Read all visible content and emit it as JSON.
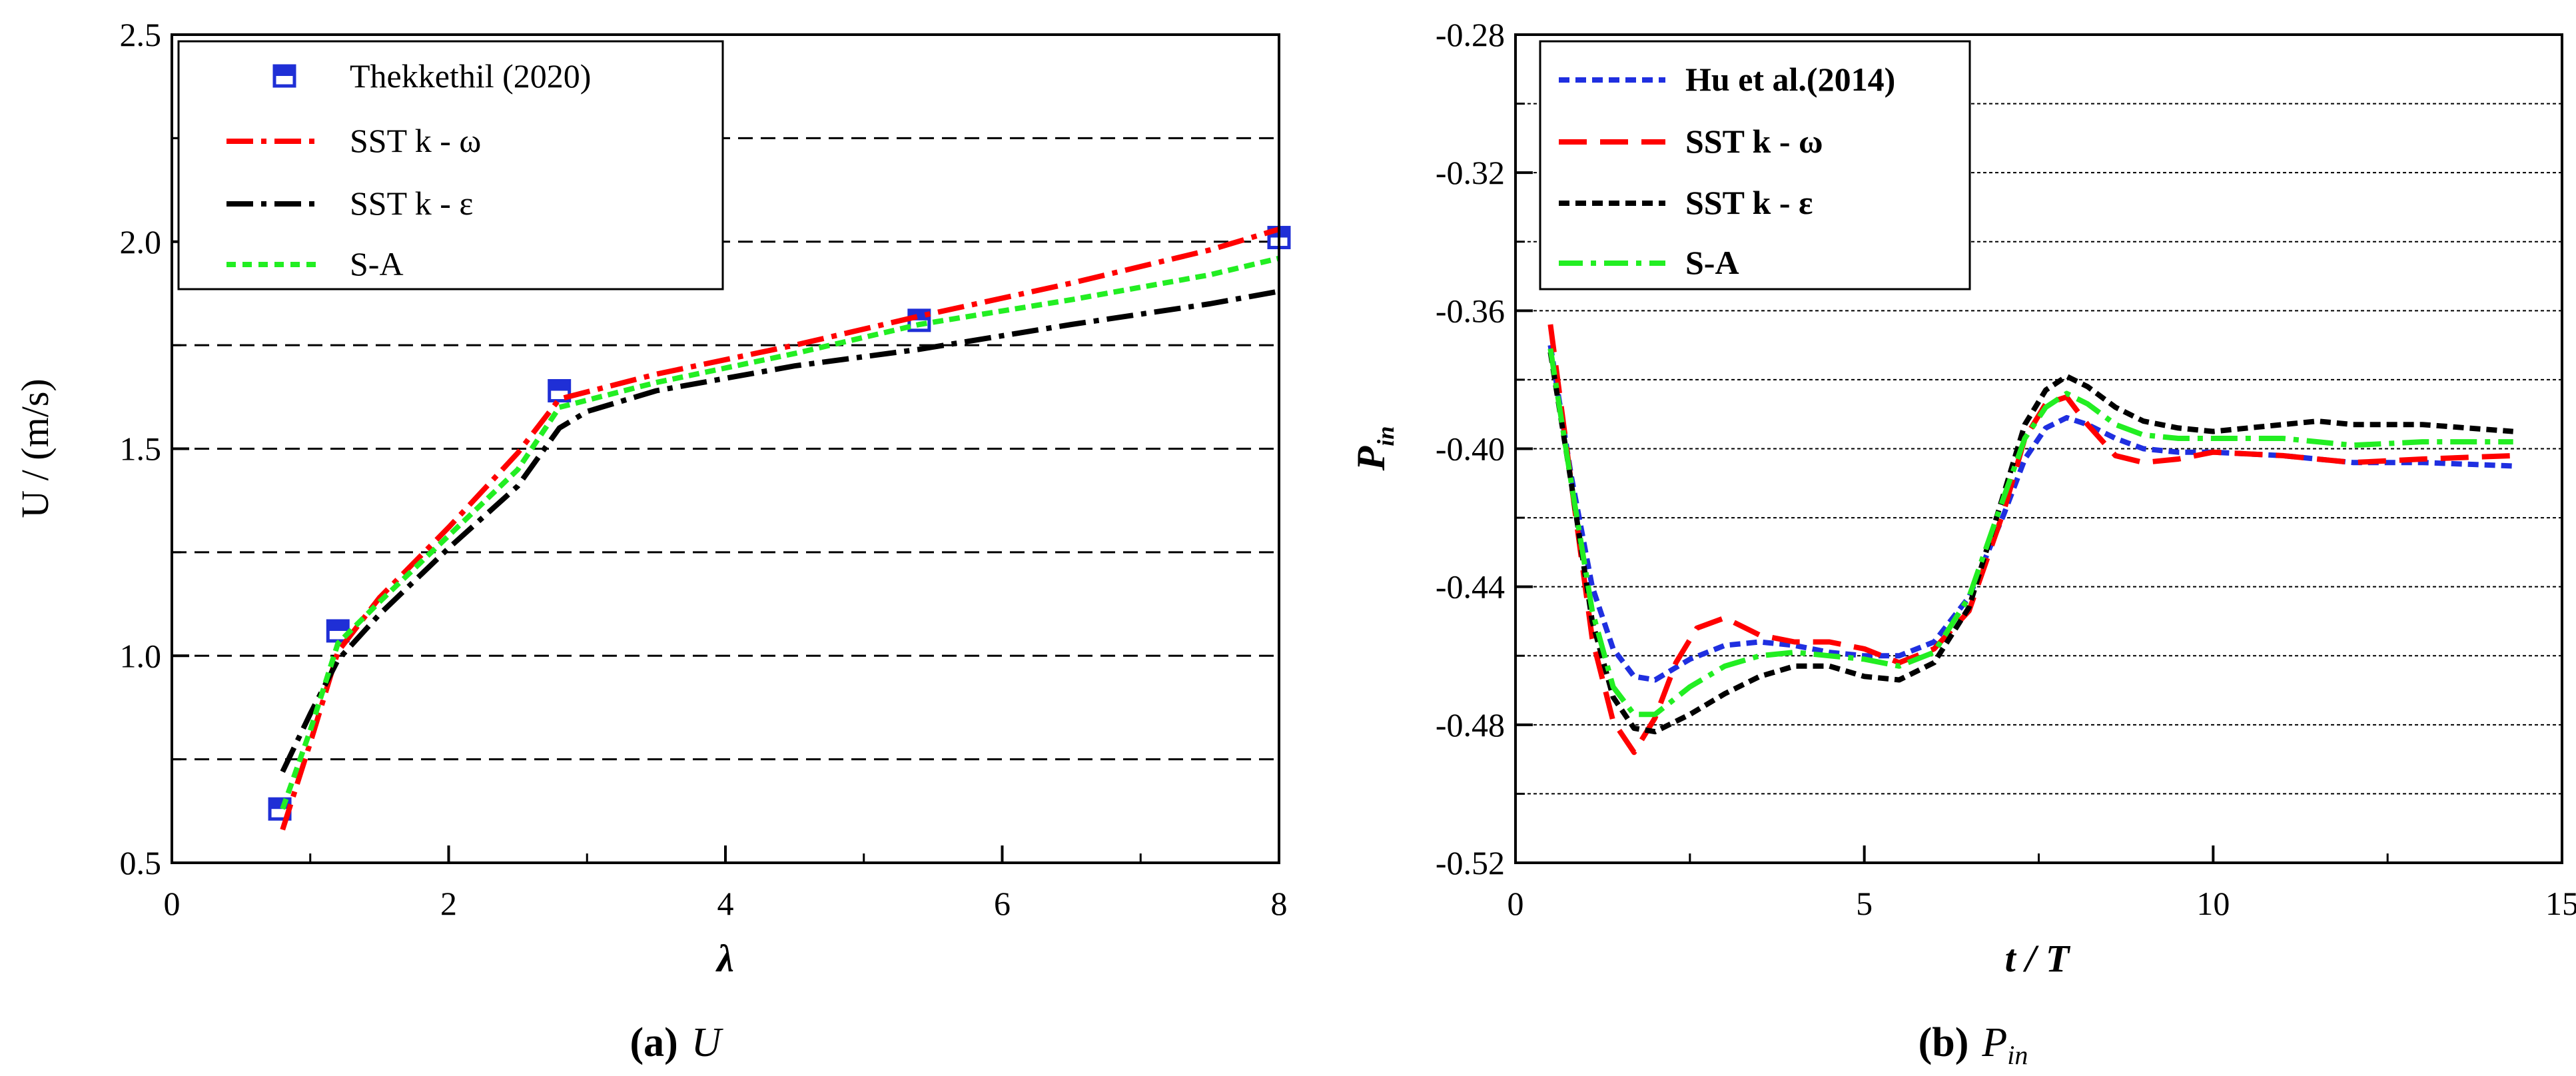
{
  "chart_data": [
    {
      "type": "line",
      "caption_label": "(a)",
      "caption_symbol": "U",
      "xlabel": "λ",
      "ylabel": "U / (m/s)",
      "xlim": [
        0,
        8
      ],
      "ylim": [
        0.5,
        2.5
      ],
      "xticks": [
        0,
        2,
        4,
        6,
        8
      ],
      "xtick_labels": [
        "0",
        "2",
        "4",
        "6",
        "8"
      ],
      "yticks": [
        0.5,
        1.0,
        1.5,
        2.0,
        2.5
      ],
      "ytick_labels": [
        "0.5",
        "1.0",
        "1.5",
        "2.0",
        "2.5"
      ],
      "grid": "horizontal dashed every 0.25",
      "legend_position": "top-left",
      "series": [
        {
          "name": "Thekkethil (2020)",
          "kind": "marker",
          "color": "#1f2fd6",
          "x": [
            0.78,
            1.2,
            2.8,
            5.4,
            8.0
          ],
          "y": [
            0.63,
            1.06,
            1.64,
            1.81,
            2.01
          ]
        },
        {
          "name": "SST k - ω",
          "kind": "line",
          "style": "dashdot",
          "color": "#ff0000",
          "x": [
            0.8,
            1.0,
            1.2,
            1.5,
            2.0,
            2.5,
            2.8,
            3.5,
            4.5,
            5.4,
            6.5,
            7.5,
            8.0
          ],
          "y": [
            0.58,
            0.79,
            1.01,
            1.14,
            1.31,
            1.49,
            1.62,
            1.68,
            1.75,
            1.82,
            1.9,
            1.98,
            2.03
          ]
        },
        {
          "name": "SST k - ε",
          "kind": "line",
          "style": "dashdot",
          "color": "#000000",
          "x": [
            0.8,
            1.0,
            1.2,
            1.5,
            2.0,
            2.5,
            2.8,
            3.0,
            3.5,
            4.5,
            5.4,
            6.5,
            7.5,
            8.0
          ],
          "y": [
            0.72,
            0.86,
            0.99,
            1.1,
            1.26,
            1.41,
            1.55,
            1.59,
            1.64,
            1.7,
            1.74,
            1.8,
            1.85,
            1.88
          ]
        },
        {
          "name": "S-A",
          "kind": "line",
          "style": "dotted",
          "color": "#22ee22",
          "x": [
            0.8,
            1.0,
            1.2,
            1.5,
            2.0,
            2.5,
            2.8,
            3.5,
            4.5,
            5.4,
            6.5,
            7.5,
            8.0
          ],
          "y": [
            0.63,
            0.82,
            1.03,
            1.13,
            1.29,
            1.45,
            1.6,
            1.66,
            1.73,
            1.8,
            1.86,
            1.92,
            1.96
          ]
        }
      ]
    },
    {
      "type": "line",
      "caption_label": "(b)",
      "caption_symbol": "P",
      "caption_subscript": "in",
      "xlabel": "t / T",
      "ylabel": "P",
      "ylabel_subscript": "in",
      "xlim": [
        0,
        15
      ],
      "ylim": [
        -0.52,
        -0.28
      ],
      "xticks": [
        0,
        5,
        10,
        15
      ],
      "xtick_labels": [
        "0",
        "5",
        "10",
        "15"
      ],
      "yticks": [
        -0.52,
        -0.48,
        -0.44,
        -0.4,
        -0.36,
        -0.32,
        -0.28
      ],
      "ytick_labels": [
        "-0.52",
        "-0.48",
        "-0.44",
        "-0.40",
        "-0.36",
        "-0.32",
        "-0.28"
      ],
      "grid": "horizontal dotted every 0.02",
      "legend_position": "top-left",
      "series": [
        {
          "name": "Hu et al.(2014)",
          "kind": "line",
          "style": "dotted",
          "color": "#1f2fe0",
          "x": [
            0.5,
            0.8,
            1.1,
            1.4,
            1.7,
            2.0,
            2.5,
            3.0,
            3.5,
            4.0,
            4.5,
            5.0,
            5.5,
            6.0,
            6.5,
            7.0,
            7.3,
            7.6,
            7.9,
            8.2,
            8.6,
            9.0,
            9.5,
            10.0,
            11.0,
            12.0,
            13.0,
            14.3
          ],
          "y": [
            -0.37,
            -0.408,
            -0.44,
            -0.458,
            -0.466,
            -0.467,
            -0.461,
            -0.457,
            -0.456,
            -0.457,
            -0.459,
            -0.46,
            -0.46,
            -0.456,
            -0.443,
            -0.419,
            -0.403,
            -0.394,
            -0.391,
            -0.393,
            -0.397,
            -0.4,
            -0.401,
            -0.401,
            -0.402,
            -0.404,
            -0.404,
            -0.405
          ]
        },
        {
          "name": "SST k - ω",
          "kind": "line",
          "style": "dashed",
          "color": "#ff0000",
          "x": [
            0.5,
            0.8,
            1.1,
            1.4,
            1.7,
            2.0,
            2.3,
            2.6,
            3.0,
            3.5,
            4.0,
            4.5,
            5.0,
            5.5,
            6.0,
            6.5,
            7.0,
            7.3,
            7.6,
            7.9,
            8.2,
            8.6,
            9.0,
            9.5,
            10.0,
            11.0,
            12.0,
            13.0,
            14.3
          ],
          "y": [
            -0.364,
            -0.41,
            -0.455,
            -0.479,
            -0.488,
            -0.478,
            -0.462,
            -0.452,
            -0.449,
            -0.454,
            -0.456,
            -0.456,
            -0.458,
            -0.462,
            -0.458,
            -0.447,
            -0.418,
            -0.397,
            -0.387,
            -0.385,
            -0.393,
            -0.402,
            -0.404,
            -0.403,
            -0.401,
            -0.402,
            -0.404,
            -0.403,
            -0.402
          ]
        },
        {
          "name": "SST k - ε",
          "kind": "line",
          "style": "dotted",
          "color": "#000000",
          "x": [
            0.5,
            0.8,
            1.1,
            1.4,
            1.7,
            2.0,
            2.5,
            3.0,
            3.5,
            4.0,
            4.5,
            5.0,
            5.5,
            6.0,
            6.5,
            7.0,
            7.3,
            7.6,
            7.9,
            8.2,
            8.6,
            9.0,
            9.5,
            10.0,
            10.5,
            11.0,
            11.5,
            12.0,
            12.5,
            13.0,
            14.3
          ],
          "y": [
            -0.372,
            -0.41,
            -0.45,
            -0.472,
            -0.481,
            -0.482,
            -0.477,
            -0.471,
            -0.466,
            -0.463,
            -0.463,
            -0.466,
            -0.467,
            -0.462,
            -0.446,
            -0.413,
            -0.393,
            -0.383,
            -0.379,
            -0.382,
            -0.388,
            -0.392,
            -0.394,
            -0.395,
            -0.394,
            -0.393,
            -0.392,
            -0.393,
            -0.393,
            -0.393,
            -0.395
          ]
        },
        {
          "name": "S-A",
          "kind": "line",
          "style": "dashdot",
          "color": "#22ee22",
          "x": [
            0.5,
            0.8,
            1.1,
            1.4,
            1.7,
            2.0,
            2.5,
            3.0,
            3.5,
            4.0,
            4.5,
            5.0,
            5.5,
            6.0,
            6.5,
            7.0,
            7.3,
            7.6,
            7.9,
            8.2,
            8.6,
            9.0,
            9.5,
            10.0,
            11.0,
            12.0,
            13.0,
            14.3
          ],
          "y": [
            -0.371,
            -0.41,
            -0.447,
            -0.469,
            -0.477,
            -0.477,
            -0.469,
            -0.463,
            -0.46,
            -0.459,
            -0.46,
            -0.461,
            -0.463,
            -0.459,
            -0.443,
            -0.414,
            -0.397,
            -0.388,
            -0.384,
            -0.387,
            -0.393,
            -0.396,
            -0.397,
            -0.397,
            -0.397,
            -0.399,
            -0.398,
            -0.398
          ]
        }
      ]
    }
  ]
}
